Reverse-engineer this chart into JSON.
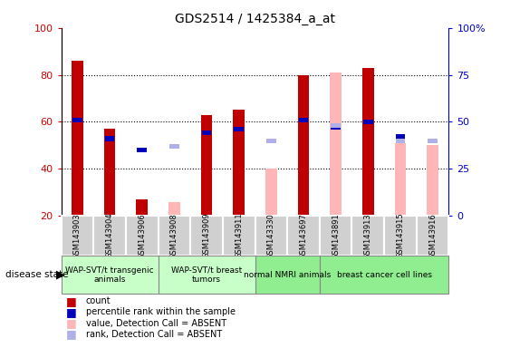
{
  "title": "GDS2514 / 1425384_a_at",
  "samples": [
    "GSM143903",
    "GSM143904",
    "GSM143906",
    "GSM143908",
    "GSM143909",
    "GSM143911",
    "GSM143330",
    "GSM143697",
    "GSM143891",
    "GSM143913",
    "GSM143915",
    "GSM143916"
  ],
  "count": [
    86,
    57,
    27,
    0,
    63,
    65,
    0,
    80,
    0,
    83,
    0,
    0
  ],
  "count_absent": [
    0,
    0,
    0,
    26,
    0,
    0,
    40,
    0,
    81,
    0,
    51,
    50
  ],
  "percentile_rank": [
    51,
    41,
    35,
    0,
    44,
    46,
    0,
    51,
    47,
    50,
    42,
    40
  ],
  "rank_absent": [
    0,
    0,
    0,
    37,
    0,
    0,
    40,
    0,
    48,
    0,
    40,
    40
  ],
  "colors": {
    "count": "#c00000",
    "count_absent": "#ffb6b6",
    "percentile_rank": "#0000bb",
    "rank_absent": "#b0b0e8",
    "axis_left": "#cc0000",
    "axis_right": "#0000cc"
  },
  "groups": [
    {
      "name": "WAP-SVT/t transgenic\nanimals",
      "indices": [
        0,
        1,
        2
      ],
      "color": "#c8ffc8"
    },
    {
      "name": "WAP-SVT/t breast\ntumors",
      "indices": [
        3,
        4,
        5
      ],
      "color": "#c8ffc8"
    },
    {
      "name": "normal NMRI animals",
      "indices": [
        6,
        7
      ],
      "color": "#90ee90"
    },
    {
      "name": "breast cancer cell lines",
      "indices": [
        8,
        9,
        10,
        11
      ],
      "color": "#90ee90"
    }
  ],
  "ylim": [
    20,
    100
  ],
  "y2lim": [
    0,
    100
  ],
  "yticks_left": [
    20,
    40,
    60,
    80,
    100
  ],
  "yticks_right_vals": [
    0,
    25,
    50,
    75,
    100
  ],
  "yticks_right_labels": [
    "0",
    "25",
    "50",
    "75",
    "100%"
  ],
  "bar_width": 0.35,
  "rank_square_size": 2.5
}
